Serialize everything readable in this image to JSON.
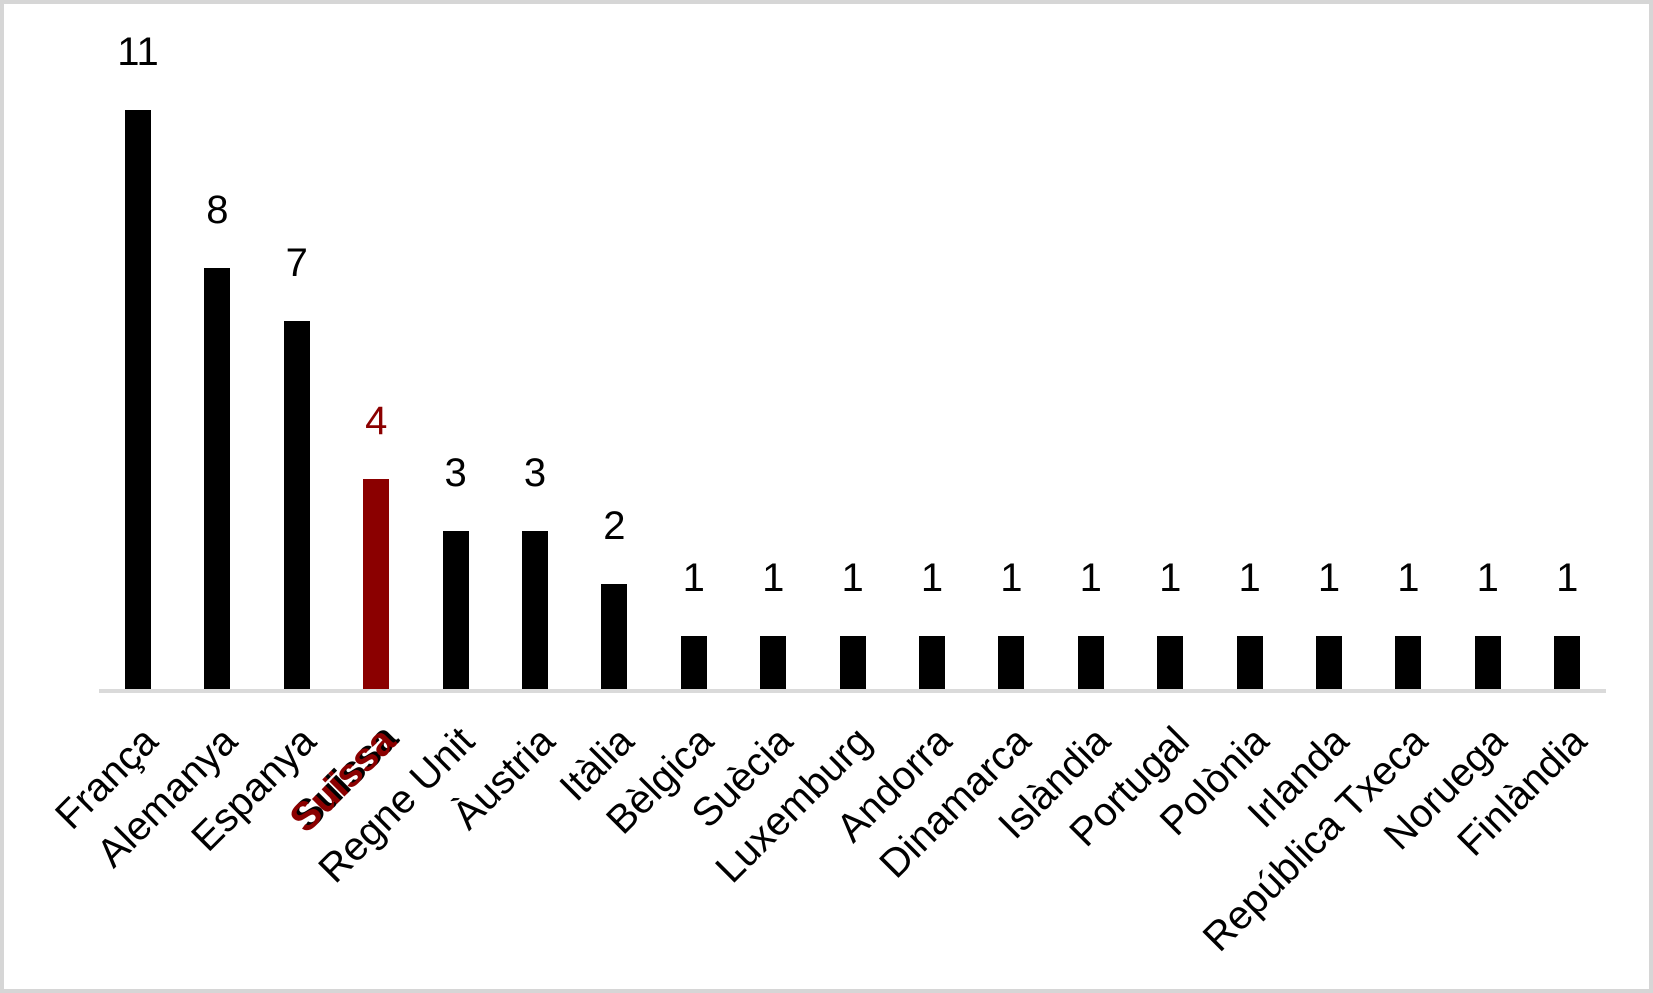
{
  "page": {
    "background": "#FFFFFF",
    "border_color": "#D6D6D6"
  },
  "chart_data": {
    "type": "bar",
    "title": "",
    "xlabel": "",
    "ylabel": "",
    "categories": [
      "França",
      "Alemanya",
      "Espanya",
      "Suïssa",
      "Regne Unit",
      "Àustria",
      "Itàlia",
      "Bèlgica",
      "Suècia",
      "Luxemburg",
      "Andorra",
      "Dinamarca",
      "Islàndia",
      "Portugal",
      "Polònia",
      "Irlanda",
      "República Txeca",
      "Noruega",
      "Finlàndia"
    ],
    "values": [
      11,
      8,
      7,
      4,
      3,
      3,
      2,
      1,
      1,
      1,
      1,
      1,
      1,
      1,
      1,
      1,
      1,
      1,
      1
    ],
    "data_labels": [
      "11",
      "8",
      "7",
      "4",
      "3",
      "3",
      "2",
      "1",
      "1",
      "1",
      "1",
      "1",
      "1",
      "1",
      "1",
      "1",
      "1",
      "1",
      "1"
    ],
    "highlight_index": 3,
    "highlight_category": "Suïssa",
    "colors": {
      "bar": "#000000",
      "highlight_bar": "#8B0000",
      "value_label": "#000000",
      "highlight_value_label": "#8B0000",
      "category_label": "#000000",
      "highlight_category_label": "#8B0000",
      "axis_line": "#DADADA"
    },
    "ylim": [
      0,
      11
    ],
    "grid": false,
    "legend": "none",
    "y_axis_visible": false,
    "x_tick_rotation_deg": 45
  }
}
